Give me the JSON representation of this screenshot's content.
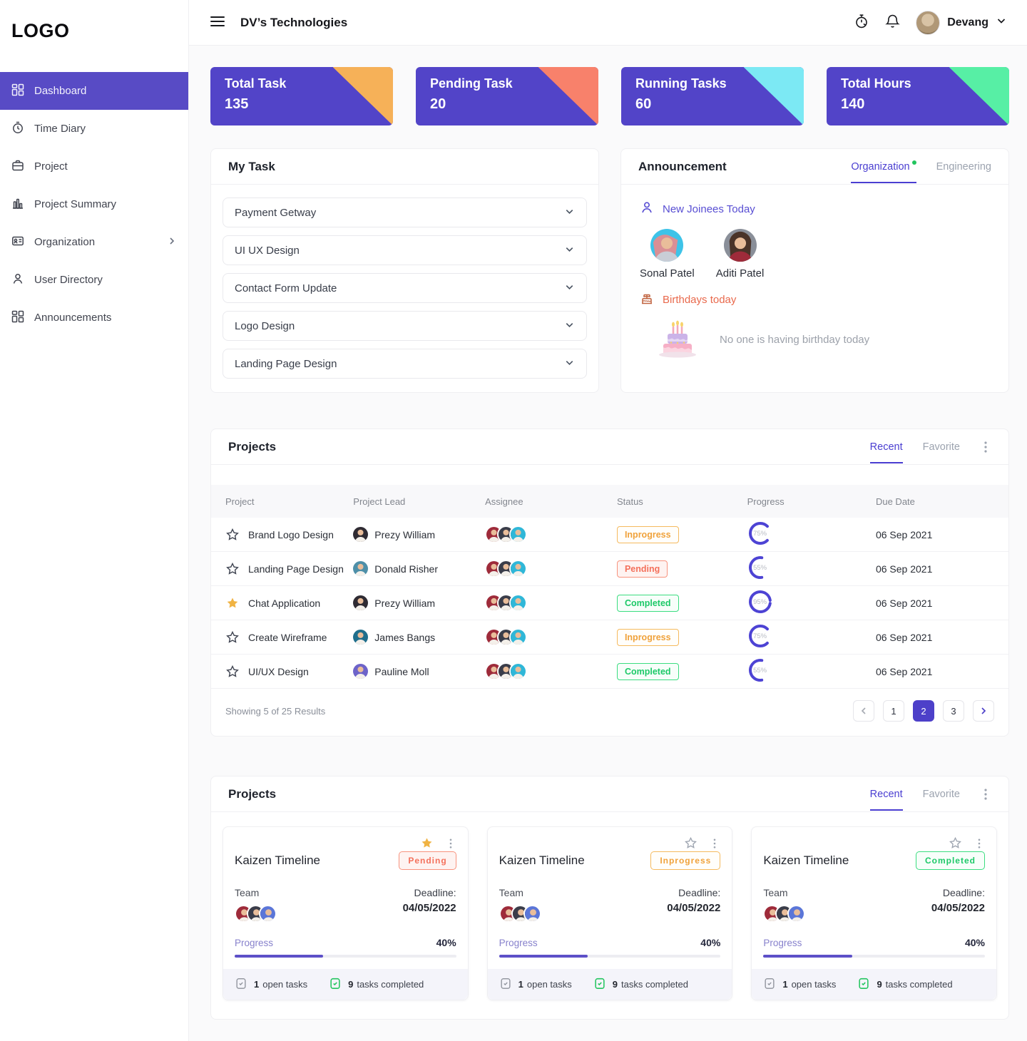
{
  "app": {
    "logo": "LOGO",
    "title": "DV’s Technologies",
    "user_name": "Devang"
  },
  "colors": {
    "primary": "#5244C8",
    "inprogress": "#F0A23B",
    "pending": "#F4705B",
    "completed": "#1DC968",
    "ring": "#4D43D4"
  },
  "sidebar": {
    "items": [
      {
        "label": "Dashboard"
      },
      {
        "label": "Time Diary"
      },
      {
        "label": "Project"
      },
      {
        "label": "Project Summary"
      },
      {
        "label": "Organization"
      },
      {
        "label": "User Directory"
      },
      {
        "label": "Announcements"
      }
    ]
  },
  "stats": {
    "cards": [
      {
        "label": "Total Task",
        "value": "135",
        "accent": "#F6B158"
      },
      {
        "label": "Pending Task",
        "value": "20",
        "accent": "#F8816B"
      },
      {
        "label": "Running Tasks",
        "value": "60",
        "accent": "#7CE9F4"
      },
      {
        "label": "Total Hours",
        "value": "140",
        "accent": "#57EFA5"
      }
    ]
  },
  "my_task": {
    "title": "My Task",
    "items": [
      {
        "label": "Payment Getway"
      },
      {
        "label": "UI UX Design"
      },
      {
        "label": "Contact Form Update"
      },
      {
        "label": "Logo Design"
      },
      {
        "label": "Landing Page Design"
      }
    ]
  },
  "announcement": {
    "title": "Announcement",
    "tab_active": "Organization",
    "tab_inactive": "Engineering",
    "new_joinees_label": "New Joinees Today",
    "people": [
      {
        "name": "Sonal Patel"
      },
      {
        "name": "Aditi Patel"
      }
    ],
    "birthdays_label": "Birthdays today",
    "birthdays_empty": "No one is having birthday today"
  },
  "projects_table": {
    "title": "Projects",
    "tab_recent": "Recent",
    "tab_favorite": "Favorite",
    "columns": [
      "Project",
      "Project Lead",
      "Assignee",
      "Status",
      "Progress",
      "Due Date"
    ],
    "rows": [
      {
        "project": "Brand Logo Design",
        "lead": "Prezy William",
        "status": "Inprogress",
        "progress": 75,
        "progress_label": "75%",
        "due": "06 Sep 2021"
      },
      {
        "project": "Landing Page Design",
        "lead": "Donald Risher",
        "status": "Pending",
        "progress": 55,
        "progress_label": "55%",
        "due": "06 Sep 2021"
      },
      {
        "project": "Chat Application",
        "lead": "Prezy William",
        "status": "Completed",
        "progress": 95,
        "progress_label": "95%",
        "due": "06 Sep 2021"
      },
      {
        "project": "Create Wireframe",
        "lead": "James Bangs",
        "status": "Inprogress",
        "progress": 75,
        "progress_label": "75%",
        "due": "06 Sep 2021"
      },
      {
        "project": "UI/UX Design",
        "lead": "Pauline Moll",
        "status": "Completed",
        "progress": 55,
        "progress_label": "55%",
        "due": "06 Sep 2021"
      }
    ],
    "footer": {
      "summary": "Showing 5 of 25 Results",
      "pages": [
        "1",
        "2",
        "3"
      ],
      "active_page": "2"
    }
  },
  "projects_cards": {
    "title": "Projects",
    "tab_recent": "Recent",
    "tab_favorite": "Favorite",
    "cards": [
      {
        "title": "Kaizen Timeline",
        "status": "Pending",
        "team_label": "Team",
        "deadline_label": "Deadline:",
        "deadline": "04/05/2022",
        "progress_label": "Progress",
        "progress": 40,
        "progress_text": "40%",
        "open_count": "1",
        "open_label": "open tasks",
        "done_count": "9",
        "done_label": "tasks completed"
      },
      {
        "title": "Kaizen Timeline",
        "status": "Inprogress",
        "team_label": "Team",
        "deadline_label": "Deadline:",
        "deadline": "04/05/2022",
        "progress_label": "Progress",
        "progress": 40,
        "progress_text": "40%",
        "open_count": "1",
        "open_label": "open tasks",
        "done_count": "9",
        "done_label": "tasks completed"
      },
      {
        "title": "Kaizen Timeline",
        "status": "Completed",
        "team_label": "Team",
        "deadline_label": "Deadline:",
        "deadline": "04/05/2022",
        "progress_label": "Progress",
        "progress": 40,
        "progress_text": "40%",
        "open_count": "1",
        "open_label": "open tasks",
        "done_count": "9",
        "done_label": "tasks completed"
      }
    ]
  }
}
